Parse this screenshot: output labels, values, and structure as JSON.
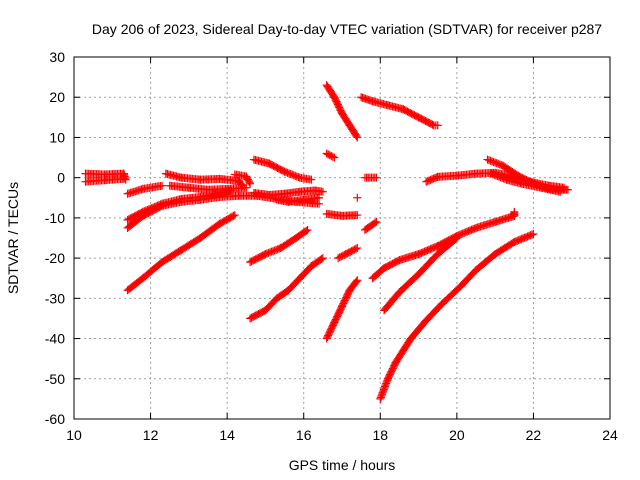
{
  "chart_data": {
    "type": "scatter",
    "title": "Day 206 of 2023, Sidereal Day-to-day VTEC variation (SDTVAR) for receiver p287",
    "xlabel": "GPS time / hours",
    "ylabel": "SDTVAR / TECUs",
    "xlim": [
      10,
      24
    ],
    "ylim": [
      -60,
      30
    ],
    "xticks": [
      "10",
      "12",
      "14",
      "16",
      "18",
      "20",
      "22",
      "24"
    ],
    "yticks": [
      "-60",
      "-50",
      "-40",
      "-30",
      "-20",
      "-10",
      "0",
      "10",
      "20",
      "30"
    ],
    "grid": true,
    "marker": "+",
    "color": "#ff0000",
    "tracks": [
      [
        [
          10.3,
          1.0
        ],
        [
          10.8,
          0.8
        ],
        [
          11.3,
          1.0
        ],
        [
          11.35,
          -0.5
        ]
      ],
      [
        [
          10.3,
          -1.0
        ],
        [
          10.8,
          -0.6
        ],
        [
          11.3,
          -0.3
        ]
      ],
      [
        [
          11.4,
          -4.0
        ],
        [
          11.8,
          -2.8
        ],
        [
          12.3,
          -2.0
        ]
      ],
      [
        [
          11.4,
          -10.5
        ],
        [
          11.8,
          -8.5
        ],
        [
          12.3,
          -6.5
        ],
        [
          12.8,
          -5.3
        ],
        [
          13.3,
          -4.8
        ],
        [
          13.7,
          -4.0
        ],
        [
          14.1,
          -3.2
        ]
      ],
      [
        [
          11.4,
          -12.5
        ],
        [
          11.8,
          -9.5
        ],
        [
          12.3,
          -7.0
        ],
        [
          12.8,
          -6.0
        ],
        [
          13.3,
          -5.5
        ],
        [
          13.8,
          -4.8
        ],
        [
          14.3,
          -4.5
        ],
        [
          14.8,
          -4.5
        ],
        [
          15.3,
          -5.3
        ],
        [
          15.8,
          -6.0
        ],
        [
          16.4,
          -6.5
        ]
      ],
      [
        [
          12.4,
          1.0
        ],
        [
          12.8,
          0.0
        ],
        [
          13.3,
          -0.5
        ],
        [
          13.8,
          -0.3
        ],
        [
          14.3,
          -0.8
        ],
        [
          14.4,
          -2.0
        ]
      ],
      [
        [
          12.5,
          -2.0
        ],
        [
          13.0,
          -2.5
        ],
        [
          13.5,
          -3.0
        ],
        [
          14.0,
          -2.8
        ],
        [
          14.5,
          -2.5
        ]
      ],
      [
        [
          14.2,
          0.8
        ],
        [
          14.5,
          0.3
        ],
        [
          14.6,
          -1.5
        ]
      ],
      [
        [
          11.4,
          -28.0
        ],
        [
          11.8,
          -25.0
        ],
        [
          12.3,
          -21.0
        ],
        [
          12.8,
          -18.0
        ],
        [
          13.3,
          -15.0
        ],
        [
          13.8,
          -11.5
        ],
        [
          14.2,
          -9.3
        ]
      ],
      [
        [
          14.7,
          4.5
        ],
        [
          15.1,
          3.5
        ],
        [
          15.5,
          1.5
        ],
        [
          15.9,
          0.0
        ],
        [
          16.2,
          -0.5
        ]
      ],
      [
        [
          14.7,
          -3.8
        ],
        [
          15.1,
          -4.3
        ],
        [
          15.5,
          -4.0
        ],
        [
          15.9,
          -3.5
        ],
        [
          16.3,
          -3.2
        ],
        [
          16.5,
          -3.5
        ]
      ],
      [
        [
          15.3,
          -5.5
        ],
        [
          15.6,
          -6.0
        ],
        [
          16.0,
          -5.5
        ],
        [
          16.4,
          -5.0
        ]
      ],
      [
        [
          14.6,
          -21.0
        ],
        [
          15.0,
          -19.0
        ],
        [
          15.4,
          -17.5
        ],
        [
          15.8,
          -15.0
        ],
        [
          16.1,
          -13.0
        ]
      ],
      [
        [
          14.6,
          -35.0
        ],
        [
          15.0,
          -33.0
        ],
        [
          15.3,
          -30.0
        ],
        [
          15.6,
          -28.0
        ],
        [
          15.9,
          -25.0
        ],
        [
          16.2,
          -22.0
        ],
        [
          16.5,
          -20.0
        ]
      ],
      [
        [
          16.6,
          23.0
        ],
        [
          16.8,
          20.0
        ],
        [
          17.0,
          16.0
        ],
        [
          17.2,
          13.0
        ],
        [
          17.4,
          10.0
        ]
      ],
      [
        [
          17.5,
          20.0
        ],
        [
          17.8,
          19.0
        ],
        [
          18.2,
          18.0
        ],
        [
          18.6,
          17.0
        ],
        [
          19.0,
          15.0
        ],
        [
          19.4,
          13.0
        ],
        [
          19.5,
          13.0
        ]
      ],
      [
        [
          16.6,
          6.0
        ],
        [
          16.8,
          5.0
        ]
      ],
      [
        [
          16.6,
          -9.0
        ],
        [
          17.0,
          -9.5
        ],
        [
          17.4,
          -9.3
        ]
      ],
      [
        [
          16.6,
          -40.0
        ],
        [
          16.8,
          -36.0
        ],
        [
          17.0,
          -32.0
        ],
        [
          17.2,
          -28.0
        ],
        [
          17.4,
          -25.5
        ]
      ],
      [
        [
          16.9,
          -20.0
        ],
        [
          17.1,
          -19.0
        ],
        [
          17.4,
          -17.5
        ]
      ],
      [
        [
          17.6,
          0.0
        ],
        [
          17.9,
          0.0
        ]
      ],
      [
        [
          17.4,
          -5.0
        ]
      ],
      [
        [
          17.6,
          -13.0
        ],
        [
          17.9,
          -11.0
        ]
      ],
      [
        [
          17.8,
          -25.0
        ],
        [
          18.1,
          -22.5
        ],
        [
          18.5,
          -20.5
        ],
        [
          19.0,
          -19.0
        ],
        [
          19.5,
          -17.0
        ],
        [
          20.0,
          -14.5
        ],
        [
          20.5,
          -12.5
        ],
        [
          21.0,
          -11.0
        ],
        [
          21.5,
          -9.5
        ],
        [
          21.5,
          -8.5
        ]
      ],
      [
        [
          18.1,
          -33.0
        ],
        [
          18.5,
          -28.5
        ],
        [
          19.0,
          -24.0
        ],
        [
          19.5,
          -19.0
        ],
        [
          20.0,
          -15.0
        ]
      ],
      [
        [
          18.0,
          -55.0
        ],
        [
          18.2,
          -50.0
        ],
        [
          18.4,
          -46.0
        ],
        [
          18.8,
          -40.0
        ],
        [
          19.2,
          -35.5
        ],
        [
          19.6,
          -31.5
        ],
        [
          20.1,
          -27.0
        ],
        [
          20.5,
          -23.0
        ],
        [
          21.0,
          -19.0
        ],
        [
          21.5,
          -16.0
        ],
        [
          22.0,
          -14.0
        ]
      ],
      [
        [
          19.2,
          -1.0
        ],
        [
          19.5,
          0.2
        ],
        [
          20.0,
          0.5
        ],
        [
          20.5,
          1.0
        ],
        [
          21.0,
          1.2
        ],
        [
          21.4,
          0.5
        ],
        [
          21.9,
          -1.0
        ],
        [
          22.4,
          -2.0
        ],
        [
          22.8,
          -2.5
        ]
      ],
      [
        [
          20.8,
          4.5
        ],
        [
          21.2,
          3.0
        ],
        [
          21.6,
          0.5
        ],
        [
          22.0,
          -1.5
        ],
        [
          22.5,
          -3.0
        ],
        [
          22.9,
          -3.0
        ]
      ],
      [
        [
          20.9,
          1.0
        ],
        [
          21.3,
          -0.5
        ],
        [
          21.7,
          -1.5
        ],
        [
          22.2,
          -2.5
        ],
        [
          22.7,
          -3.5
        ]
      ]
    ]
  }
}
